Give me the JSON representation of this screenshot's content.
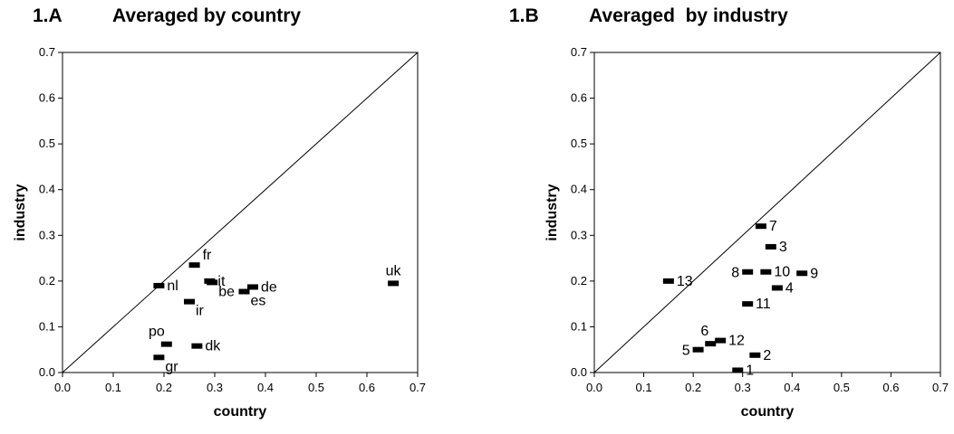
{
  "chart_data": [
    {
      "type": "scatter",
      "panel_label": "1.A",
      "title": "Averaged by country",
      "xlabel": "country",
      "ylabel": "industry",
      "xlim": [
        0.0,
        0.7
      ],
      "ylim": [
        0.0,
        0.7
      ],
      "x_ticks": [
        "0.0",
        "0.1",
        "0.2",
        "0.3",
        "0.4",
        "0.5",
        "0.6",
        "0.7"
      ],
      "y_ticks": [
        "0.0",
        "0.1",
        "0.2",
        "0.3",
        "0.4",
        "0.5",
        "0.6",
        "0.7"
      ],
      "grid": false,
      "diagonal_line": true,
      "points": [
        {
          "label": "fr",
          "x": 0.26,
          "y": 0.235,
          "label_pos": "upper-right"
        },
        {
          "label": "nl",
          "x": 0.19,
          "y": 0.19,
          "label_pos": "right"
        },
        {
          "label": "it",
          "x": 0.29,
          "y": 0.2,
          "label_pos": "right"
        },
        {
          "label": "be",
          "x": 0.295,
          "y": 0.197,
          "label_pos": "lower-right"
        },
        {
          "label": "de",
          "x": 0.375,
          "y": 0.187,
          "label_pos": "right"
        },
        {
          "label": "es",
          "x": 0.358,
          "y": 0.177,
          "label_pos": "lower-right"
        },
        {
          "label": "ir",
          "x": 0.25,
          "y": 0.155,
          "label_pos": "lower-right"
        },
        {
          "label": "uk",
          "x": 0.652,
          "y": 0.195,
          "label_pos": "above"
        },
        {
          "label": "po",
          "x": 0.205,
          "y": 0.062,
          "label_pos": "upper-left"
        },
        {
          "label": "dk",
          "x": 0.265,
          "y": 0.058,
          "label_pos": "right"
        },
        {
          "label": "gr",
          "x": 0.19,
          "y": 0.033,
          "label_pos": "lower-right"
        }
      ]
    },
    {
      "type": "scatter",
      "panel_label": "1.B",
      "title": "Averaged  by industry",
      "xlabel": "country",
      "ylabel": "industry",
      "xlim": [
        0.0,
        0.7
      ],
      "ylim": [
        0.0,
        0.7
      ],
      "x_ticks": [
        "0.0",
        "0.1",
        "0.2",
        "0.3",
        "0.4",
        "0.5",
        "0.6",
        "0.7"
      ],
      "y_ticks": [
        "0.0",
        "0.1",
        "0.2",
        "0.3",
        "0.4",
        "0.5",
        "0.6",
        "0.7"
      ],
      "grid": false,
      "diagonal_line": true,
      "points": [
        {
          "label": "1",
          "x": 0.29,
          "y": 0.005,
          "label_pos": "right"
        },
        {
          "label": "2",
          "x": 0.325,
          "y": 0.038,
          "label_pos": "right"
        },
        {
          "label": "3",
          "x": 0.357,
          "y": 0.275,
          "label_pos": "right"
        },
        {
          "label": "4",
          "x": 0.37,
          "y": 0.185,
          "label_pos": "right"
        },
        {
          "label": "5",
          "x": 0.21,
          "y": 0.05,
          "label_pos": "left"
        },
        {
          "label": "6",
          "x": 0.235,
          "y": 0.063,
          "label_pos": "upper-left"
        },
        {
          "label": "7",
          "x": 0.337,
          "y": 0.32,
          "label_pos": "right"
        },
        {
          "label": "8",
          "x": 0.31,
          "y": 0.22,
          "label_pos": "left"
        },
        {
          "label": "9",
          "x": 0.42,
          "y": 0.217,
          "label_pos": "right"
        },
        {
          "label": "10",
          "x": 0.347,
          "y": 0.22,
          "label_pos": "right"
        },
        {
          "label": "11",
          "x": 0.31,
          "y": 0.15,
          "label_pos": "right"
        },
        {
          "label": "12",
          "x": 0.255,
          "y": 0.07,
          "label_pos": "right"
        },
        {
          "label": "13",
          "x": 0.15,
          "y": 0.2,
          "label_pos": "right"
        }
      ]
    }
  ]
}
